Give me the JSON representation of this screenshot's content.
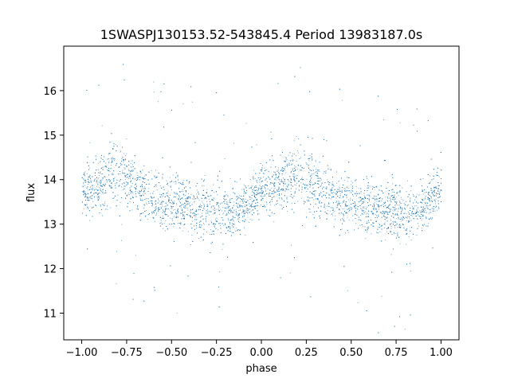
{
  "chart_data": {
    "type": "scatter",
    "title": "1SWASPJ130153.52-543845.4 Period 13983187.0s",
    "xlabel": "phase",
    "ylabel": "flux",
    "xlim": [
      -1.1,
      1.1
    ],
    "ylim": [
      10.4,
      17.0
    ],
    "xticks": [
      -1.0,
      -0.75,
      -0.5,
      -0.25,
      0.0,
      0.25,
      0.5,
      0.75,
      1.0
    ],
    "xtick_labels": [
      "−1.00",
      "−0.75",
      "−0.50",
      "−0.25",
      "0.00",
      "0.25",
      "0.50",
      "0.75",
      "1.00"
    ],
    "yticks": [
      11,
      12,
      13,
      14,
      15,
      16
    ],
    "ytick_labels": [
      "11",
      "12",
      "13",
      "14",
      "15",
      "16"
    ],
    "grid": false,
    "point_color": "#1f77b4",
    "series": [
      {
        "phase": [
          -1.0,
          -0.95,
          -0.9,
          -0.85,
          -0.8,
          -0.75,
          -0.7,
          -0.65,
          -0.6,
          -0.55,
          -0.5,
          -0.45,
          -0.4,
          -0.35,
          -0.3,
          -0.25,
          -0.2,
          -0.15,
          -0.1,
          -0.05,
          0.0,
          0.05,
          0.1,
          0.15,
          0.2,
          0.25,
          0.3,
          0.35,
          0.4,
          0.45,
          0.5,
          0.55,
          0.6,
          0.65,
          0.7,
          0.75,
          0.8,
          0.85,
          0.9,
          0.95,
          1.0
        ],
        "mean_flux": [
          13.8,
          13.8,
          13.9,
          14.1,
          14.2,
          14.0,
          13.9,
          13.7,
          13.6,
          13.5,
          13.5,
          13.5,
          13.4,
          13.3,
          13.3,
          13.3,
          13.3,
          13.3,
          13.4,
          13.6,
          13.8,
          13.8,
          13.9,
          14.1,
          14.2,
          14.0,
          13.9,
          13.7,
          13.6,
          13.5,
          13.5,
          13.5,
          13.4,
          13.3,
          13.3,
          13.3,
          13.3,
          13.3,
          13.4,
          13.6,
          13.8
        ],
        "spread": [
          0.45,
          0.5,
          0.55,
          0.6,
          0.65,
          0.6,
          0.55,
          0.5,
          0.5,
          0.5,
          0.5,
          0.5,
          0.5,
          0.55,
          0.55,
          0.55,
          0.55,
          0.5,
          0.45,
          0.45,
          0.45,
          0.45,
          0.5,
          0.55,
          0.6,
          0.65,
          0.6,
          0.55,
          0.5,
          0.5,
          0.5,
          0.5,
          0.5,
          0.5,
          0.55,
          0.55,
          0.55,
          0.55,
          0.5,
          0.45,
          0.45
        ]
      }
    ]
  }
}
